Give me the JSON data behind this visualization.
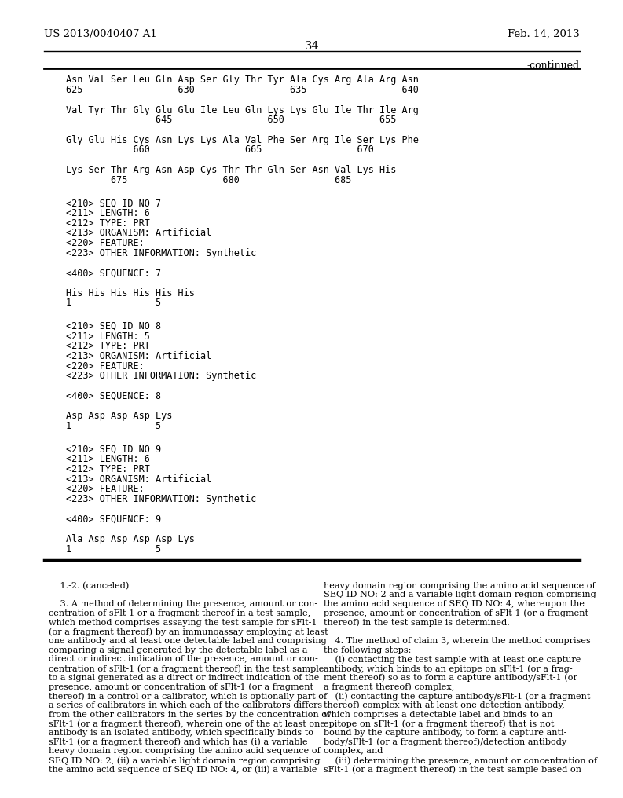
{
  "header_left": "US 2013/0040407 A1",
  "header_right": "Feb. 14, 2013",
  "page_number": "34",
  "continued_label": "-continued",
  "background_color": "#ffffff",
  "text_color": "#000000",
  "mono_font": "DejaVu Sans Mono",
  "serif_font": "DejaVu Serif",
  "top_section": [
    "Asn Val Ser Leu Gln Asp Ser Gly Thr Tyr Ala Cys Arg Ala Arg Asn",
    "625                 630                 635                 640",
    "",
    "Val Tyr Thr Gly Glu Glu Ile Leu Gln Lys Lys Glu Ile Thr Ile Arg",
    "                645                 650                 655",
    "",
    "Gly Glu His Cys Asn Lys Lys Ala Val Phe Ser Arg Ile Ser Lys Phe",
    "            660                 665                 670",
    "",
    "Lys Ser Thr Arg Asn Asp Cys Thr Thr Gln Ser Asn Val Lys His",
    "        675                 680                 685"
  ],
  "seq7_lines": [
    "<210> SEQ ID NO 7",
    "<211> LENGTH: 6",
    "<212> TYPE: PRT",
    "<213> ORGANISM: Artificial",
    "<220> FEATURE:",
    "<223> OTHER INFORMATION: Synthetic",
    "",
    "<400> SEQUENCE: 7",
    "",
    "His His His His His His",
    "1               5"
  ],
  "seq8_lines": [
    "<210> SEQ ID NO 8",
    "<211> LENGTH: 5",
    "<212> TYPE: PRT",
    "<213> ORGANISM: Artificial",
    "<220> FEATURE:",
    "<223> OTHER INFORMATION: Synthetic",
    "",
    "<400> SEQUENCE: 8",
    "",
    "Asp Asp Asp Asp Lys",
    "1               5"
  ],
  "seq9_lines": [
    "<210> SEQ ID NO 9",
    "<211> LENGTH: 6",
    "<212> TYPE: PRT",
    "<213> ORGANISM: Artificial",
    "<220> FEATURE:",
    "<223> OTHER INFORMATION: Synthetic",
    "",
    "<400> SEQUENCE: 9",
    "",
    "Ala Asp Asp Asp Asp Lys",
    "1               5"
  ],
  "bottom_left_lines": [
    "    1.-2. (canceled)",
    "",
    "    3. A method of determining the presence, amount or con-",
    "centration of sFlt-1 or a fragment thereof in a test sample,",
    "which method comprises assaying the test sample for sFlt-1",
    "(or a fragment thereof) by an immunoassay employing at least",
    "one antibody and at least one detectable label and comprising",
    "comparing a signal generated by the detectable label as a",
    "direct or indirect indication of the presence, amount or con-",
    "centration of sFlt-1 (or a fragment thereof) in the test sample",
    "to a signal generated as a direct or indirect indication of the",
    "presence, amount or concentration of sFlt-1 (or a fragment",
    "thereof) in a control or a calibrator, which is optionally part of",
    "a series of calibrators in which each of the calibrators differs",
    "from the other calibrators in the series by the concentration of",
    "sFlt-1 (or a fragment thereof), wherein one of the at least one",
    "antibody is an isolated antibody, which specifically binds to",
    "sFlt-1 (or a fragment thereof) and which has (i) a variable",
    "heavy domain region comprising the amino acid sequence of",
    "SEQ ID NO: 2, (ii) a variable light domain region comprising",
    "the amino acid sequence of SEQ ID NO: 4, or (iii) a variable"
  ],
  "bottom_right_lines": [
    "heavy domain region comprising the amino acid sequence of",
    "SEQ ID NO: 2 and a variable light domain region comprising",
    "the amino acid sequence of SEQ ID NO: 4, whereupon the",
    "presence, amount or concentration of sFlt-1 (or a fragment",
    "thereof) in the test sample is determined.",
    "",
    "    4. The method of claim 3, wherein the method comprises",
    "the following steps:",
    "    (i) contacting the test sample with at least one capture",
    "antibody, which binds to an epitope on sFlt-1 (or a frag-",
    "ment thereof) so as to form a capture antibody/sFlt-1 (or",
    "a fragment thereof) complex,",
    "    (ii) contacting the capture antibody/sFlt-1 (or a fragment",
    "thereof) complex with at least one detection antibody,",
    "which comprises a detectable label and binds to an",
    "epitope on sFlt-1 (or a fragment thereof) that is not",
    "bound by the capture antibody, to form a capture anti-",
    "body/sFlt-1 (or a fragment thereof)/detection antibody",
    "complex, and",
    "    (iii) determining the presence, amount or concentration of",
    "sFlt-1 (or a fragment thereof) in the test sample based on"
  ]
}
